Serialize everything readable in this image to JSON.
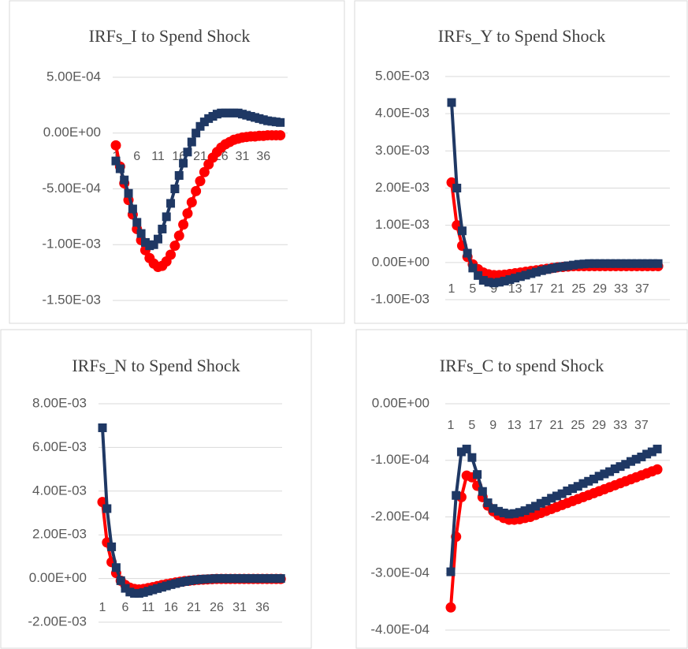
{
  "chart_data": [
    {
      "type": "line",
      "title": "IRFs_I  to Spend Shock",
      "categories": [
        1,
        null,
        null,
        null,
        null,
        6,
        null,
        null,
        null,
        null,
        11,
        null,
        null,
        null,
        null,
        16,
        null,
        null,
        null,
        null,
        21,
        null,
        null,
        null,
        null,
        26,
        null,
        null,
        null,
        null,
        31,
        null,
        null,
        null,
        null,
        36,
        null,
        null,
        null,
        null
      ],
      "series": [
        {
          "color": "#ff0000",
          "marker": "circle",
          "values": [
            -0.00011,
            -0.0003,
            -0.00045,
            -0.0006,
            -0.00073,
            -0.00086,
            -0.00096,
            -0.00105,
            -0.00112,
            -0.00117,
            -0.0012,
            -0.00119,
            -0.00115,
            -0.00109,
            -0.00101,
            -0.00092,
            -0.00082,
            -0.00072,
            -0.00062,
            -0.00052,
            -0.00043,
            -0.00035,
            -0.00028,
            -0.00022,
            -0.00017,
            -0.00013,
            -0.0001,
            -8e-05,
            -6e-05,
            -5e-05,
            -4e-05,
            -3.5e-05,
            -3e-05,
            -3e-05,
            -2.5e-05,
            -2.5e-05,
            -2e-05,
            -2e-05,
            -2e-05,
            -2e-05
          ]
        },
        {
          "color": "#1f3864",
          "marker": "square",
          "values": [
            -0.00025,
            -0.00032,
            -0.00042,
            -0.00054,
            -0.00068,
            -0.0008,
            -0.0009,
            -0.00098,
            -0.00101,
            -0.001,
            -0.00095,
            -0.00086,
            -0.00075,
            -0.00063,
            -0.0005,
            -0.00038,
            -0.00027,
            -0.00017,
            -8e-05,
            0,
            6e-05,
            0.0001,
            0.00013,
            0.00015,
            0.00017,
            0.00018,
            0.00018,
            0.00018,
            0.00018,
            0.00018,
            0.00017,
            0.00016,
            0.00015,
            0.00014,
            0.00013,
            0.00012,
            0.00011,
            0.000105,
            0.0001,
            9.5e-05
          ]
        }
      ],
      "ylim": [
        -0.0015,
        0.0005
      ],
      "yticks": [
        {
          "value": -0.0015,
          "label": "-1.50E-03"
        },
        {
          "value": -0.001,
          "label": "-1.00E-03"
        },
        {
          "value": -0.0005,
          "label": "-5.00E-04"
        },
        {
          "value": 0,
          "label": "0.00E+00"
        },
        {
          "value": 0.0005,
          "label": "5.00E-04"
        }
      ],
      "grid": true
    },
    {
      "type": "line",
      "title": "IRFs_Y to Spend Shock",
      "categories": [
        1,
        null,
        null,
        null,
        5,
        null,
        null,
        null,
        9,
        null,
        null,
        null,
        13,
        null,
        null,
        null,
        17,
        null,
        null,
        null,
        21,
        null,
        null,
        null,
        25,
        null,
        null,
        null,
        29,
        null,
        null,
        null,
        33,
        null,
        null,
        null,
        37,
        null,
        null,
        null
      ],
      "series": [
        {
          "color": "#ff0000",
          "marker": "circle",
          "values": [
            0.00215,
            0.001,
            0.00045,
            0.00015,
            -5e-05,
            -0.00018,
            -0.00027,
            -0.00032,
            -0.00034,
            -0.00034,
            -0.00033,
            -0.00031,
            -0.00029,
            -0.00027,
            -0.00025,
            -0.00023,
            -0.00021,
            -0.00019,
            -0.00017,
            -0.00015,
            -0.00013,
            -0.00012,
            -0.00011,
            -0.0001,
            -0.0001,
            -0.0001,
            -0.0001,
            -0.0001,
            -0.0001,
            -0.0001,
            -0.0001,
            -0.0001,
            -0.0001,
            -0.0001,
            -0.0001,
            -0.0001,
            -0.0001,
            -0.0001,
            -0.0001,
            -0.0001
          ]
        },
        {
          "color": "#1f3864",
          "marker": "square",
          "values": [
            0.0043,
            0.002,
            0.00085,
            0.00025,
            -0.00015,
            -0.00035,
            -0.00048,
            -0.00053,
            -0.00055,
            -0.00053,
            -0.0005,
            -0.00046,
            -0.00042,
            -0.00038,
            -0.00034,
            -0.0003,
            -0.00026,
            -0.00022,
            -0.00019,
            -0.00016,
            -0.00013,
            -0.00011,
            -9e-05,
            -7e-05,
            -5e-05,
            -4e-05,
            -3e-05,
            -3e-05,
            -3e-05,
            -3e-05,
            -3e-05,
            -3e-05,
            -3e-05,
            -3e-05,
            -3e-05,
            -3e-05,
            -3e-05,
            -3e-05,
            -3e-05,
            -3e-05
          ]
        }
      ],
      "ylim": [
        -0.001,
        0.005
      ],
      "yticks": [
        {
          "value": -0.001,
          "label": "-1.00E-03"
        },
        {
          "value": 0,
          "label": "0.00E+00"
        },
        {
          "value": 0.001,
          "label": "1.00E-03"
        },
        {
          "value": 0.002,
          "label": "2.00E-03"
        },
        {
          "value": 0.003,
          "label": "3.00E-03"
        },
        {
          "value": 0.004,
          "label": "4.00E-03"
        },
        {
          "value": 0.005,
          "label": "5.00E-03"
        }
      ],
      "grid": true
    },
    {
      "type": "line",
      "title": "IRFs_N to Spend Shock",
      "categories": [
        1,
        null,
        null,
        null,
        null,
        6,
        null,
        null,
        null,
        null,
        11,
        null,
        null,
        null,
        null,
        16,
        null,
        null,
        null,
        null,
        21,
        null,
        null,
        null,
        null,
        26,
        null,
        null,
        null,
        null,
        31,
        null,
        null,
        null,
        null,
        36,
        null,
        null,
        null,
        null
      ],
      "series": [
        {
          "color": "#ff0000",
          "marker": "circle",
          "values": [
            0.0035,
            0.00165,
            0.00075,
            0.00025,
            -0.0001,
            -0.0003,
            -0.00042,
            -0.00048,
            -0.0005,
            -0.00048,
            -0.00044,
            -0.0004,
            -0.00035,
            -0.0003,
            -0.00026,
            -0.00022,
            -0.00018,
            -0.00015,
            -0.00012,
            -0.0001,
            -8e-05,
            -6e-05,
            -5e-05,
            -4e-05,
            -3e-05,
            -2e-05,
            -2e-05,
            -2e-05,
            -2e-05,
            -2e-05,
            -2e-05,
            -2e-05,
            -2e-05,
            -2e-05,
            -2e-05,
            -2e-05,
            -2e-05,
            -2e-05,
            -2e-05,
            -2e-05
          ]
        },
        {
          "color": "#1f3864",
          "marker": "square",
          "values": [
            0.0069,
            0.0032,
            0.00145,
            0.0005,
            -0.0001,
            -0.00045,
            -0.00062,
            -0.00068,
            -0.00068,
            -0.00064,
            -0.00058,
            -0.00052,
            -0.00046,
            -0.0004,
            -0.00034,
            -0.00028,
            -0.00023,
            -0.00018,
            -0.00014,
            -0.0001,
            -7e-05,
            -5e-05,
            -3e-05,
            -2e-05,
            -1e-05,
            0,
            0,
            0,
            0,
            0,
            0,
            0,
            0,
            0,
            0,
            0,
            0,
            0,
            0,
            0
          ]
        }
      ],
      "ylim": [
        -0.002,
        0.008
      ],
      "yticks": [
        {
          "value": -0.002,
          "label": "-2.00E-03"
        },
        {
          "value": 0,
          "label": "0.00E+00"
        },
        {
          "value": 0.002,
          "label": "2.00E-03"
        },
        {
          "value": 0.004,
          "label": "4.00E-03"
        },
        {
          "value": 0.006,
          "label": "6.00E-03"
        },
        {
          "value": 0.008,
          "label": "8.00E-03"
        }
      ],
      "grid": true
    },
    {
      "type": "line",
      "title": "IRFs_C to spend Shock",
      "categories": [
        1,
        null,
        null,
        null,
        5,
        null,
        null,
        null,
        9,
        null,
        null,
        null,
        13,
        null,
        null,
        null,
        17,
        null,
        null,
        null,
        21,
        null,
        null,
        null,
        25,
        null,
        null,
        null,
        29,
        null,
        null,
        null,
        33,
        null,
        null,
        null,
        37,
        null,
        null,
        null
      ],
      "series": [
        {
          "color": "#ff0000",
          "marker": "circle",
          "values": [
            -0.00036,
            -0.000235,
            -0.000165,
            -0.000127,
            -0.00013,
            -0.000145,
            -0.000165,
            -0.00018,
            -0.00019,
            -0.000197,
            -0.000202,
            -0.000205,
            -0.000205,
            -0.000204,
            -0.000202,
            -0.0002,
            -0.0001965,
            -0.000193,
            -0.0001895,
            -0.000186,
            -0.0001825,
            -0.000179,
            -0.0001755,
            -0.000172,
            -0.0001685,
            -0.000165,
            -0.0001615,
            -0.000158,
            -0.0001545,
            -0.000151,
            -0.0001475,
            -0.000144,
            -0.0001405,
            -0.000137,
            -0.0001335,
            -0.00013,
            -0.0001265,
            -0.000123,
            -0.0001195,
            -0.000116
          ]
        },
        {
          "color": "#1f3864",
          "marker": "square",
          "values": [
            -0.000297,
            -0.000162,
            -8.5e-05,
            -8e-05,
            -9.5e-05,
            -0.000125,
            -0.000155,
            -0.000175,
            -0.000185,
            -0.00019,
            -0.000193,
            -0.000195,
            -0.000194,
            -0.000192,
            -0.000189,
            -0.000185,
            -0.000181,
            -0.000176,
            -0.000172,
            -0.000167,
            -0.000163,
            -0.000159,
            -0.000154,
            -0.00015,
            -0.000146,
            -0.000141,
            -0.000137,
            -0.000133,
            -0.000128,
            -0.000124,
            -0.00012,
            -0.000115,
            -0.000111,
            -0.000107,
            -0.000102,
            -9.8e-05,
            -9.4e-05,
            -8.9e-05,
            -8.5e-05,
            -8e-05
          ]
        }
      ],
      "ylim": [
        -0.0004,
        0
      ],
      "yticks": [
        {
          "value": -0.0004,
          "label": "-4.00E-04"
        },
        {
          "value": -0.0003,
          "label": "-3.00E-04"
        },
        {
          "value": -0.0002,
          "label": "-2.00E-04"
        },
        {
          "value": -0.0001,
          "label": "-1.00E-04"
        },
        {
          "value": 0,
          "label": "0.00E+00"
        }
      ],
      "grid": true
    }
  ]
}
